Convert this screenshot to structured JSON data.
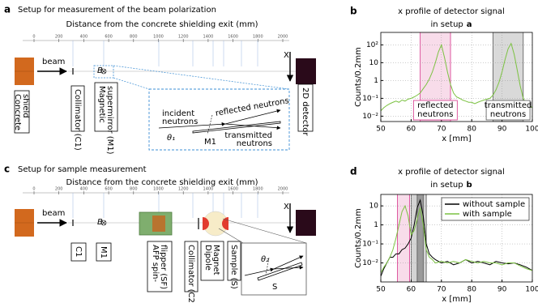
{
  "setup_a": {
    "label": "a",
    "title": "Setup for measurement of the beam polarization",
    "axis_title": "Distance from the concrete shielding exit (mm)",
    "xlim": [
      0,
      2000
    ],
    "ticks": [
      0,
      200,
      400,
      600,
      800,
      1000,
      1200,
      1400,
      1600,
      1800,
      2000
    ],
    "beam": "beam",
    "x_axis": "X",
    "field": "B",
    "components": {
      "shield": [
        "Concrete",
        "shield"
      ],
      "collimator": [
        "Collimator (C1)"
      ],
      "mirror": [
        "Magnetic",
        "supermirror (M1)"
      ],
      "detector": [
        "2D detector"
      ]
    },
    "inset": {
      "incident": [
        "incident",
        "neutrons"
      ],
      "reflected": "reflected neutrons",
      "transmitted": [
        "transmitted",
        "neutrons"
      ],
      "angle": "θ₁",
      "element": "M1"
    }
  },
  "setup_c": {
    "label": "c",
    "title": "Setup for sample measurement",
    "axis_title": "Distance from the concrete shielding exit (mm)",
    "xlim": [
      0,
      2000
    ],
    "ticks": [
      0,
      200,
      400,
      600,
      800,
      1000,
      1200,
      1400,
      1600,
      1800,
      2000
    ],
    "beam": "beam",
    "x_axis": "X",
    "field": "B",
    "components": {
      "c1": [
        "C1"
      ],
      "m1": [
        "M1"
      ],
      "flipper": [
        "AFP spin-",
        "flipper (SF)"
      ],
      "collimator": [
        "Collimator (C2)"
      ],
      "magnet": [
        "Dipole",
        "Magnet"
      ],
      "sample": [
        "Sample (S)"
      ]
    },
    "inset": {
      "angle": "θ₂",
      "element": "S"
    }
  },
  "chart_data": [
    {
      "type": "line",
      "panel_label": "b",
      "title": [
        "x profile of detector signal",
        "in setup"
      ],
      "title_ref": "a",
      "xlabel": "x [mm]",
      "ylabel": "Counts/0.2mm",
      "xlim": [
        50,
        100
      ],
      "xticks": [
        50,
        60,
        70,
        80,
        90,
        100
      ],
      "ylim": [
        0.005,
        500
      ],
      "yscale": "log",
      "yticks": [
        {
          "value": 0.01,
          "label": "10⁻²"
        },
        {
          "value": 0.1,
          "label": "10⁻¹"
        },
        1,
        10,
        {
          "value": 100,
          "label": "10²"
        }
      ],
      "grid": true,
      "regions": [
        {
          "x": [
            63,
            73
          ],
          "color": "#f8dcea",
          "edge": "#d6338a",
          "label": [
            "reflected",
            "neutrons"
          ]
        },
        {
          "x": [
            87,
            97
          ],
          "color": "#d9d9d9",
          "edge": "#555555",
          "label": [
            "transmitted",
            "neutrons"
          ]
        }
      ],
      "x": [
        50,
        51,
        52,
        53,
        54,
        55,
        56,
        57,
        58,
        59,
        60,
        61,
        62,
        63,
        64,
        65,
        66,
        67,
        68,
        69,
        70,
        71,
        72,
        73,
        74,
        75,
        76,
        77,
        78,
        79,
        80,
        81,
        82,
        83,
        84,
        85,
        86,
        87,
        88,
        89,
        90,
        91,
        92,
        93,
        94,
        95,
        96,
        97,
        98,
        99,
        100
      ],
      "series": [
        {
          "color": "#7cc242",
          "values": [
            0.02,
            0.03,
            0.04,
            0.05,
            0.06,
            0.07,
            0.06,
            0.08,
            0.07,
            0.09,
            0.1,
            0.12,
            0.15,
            0.2,
            0.35,
            0.6,
            1.2,
            3,
            10,
            40,
            100,
            20,
            3,
            0.6,
            0.2,
            0.12,
            0.1,
            0.08,
            0.07,
            0.06,
            0.06,
            0.05,
            0.06,
            0.07,
            0.08,
            0.09,
            0.1,
            0.15,
            0.3,
            0.8,
            3,
            15,
            60,
            120,
            30,
            4,
            0.5,
            0.1,
            0.05,
            0.04,
            0.03
          ]
        }
      ]
    },
    {
      "type": "line",
      "panel_label": "d",
      "title": [
        "x profile of detector signal",
        "in setup"
      ],
      "title_ref": "b",
      "xlabel": "x [mm]",
      "ylabel": "Counts/0.2mm",
      "xlim": [
        50,
        100
      ],
      "xticks": [
        50,
        60,
        70,
        80,
        90,
        100
      ],
      "ylim": [
        0.001,
        40
      ],
      "yscale": "log",
      "yticks": [
        {
          "value": 0.01,
          "label": "10⁻²"
        },
        {
          "value": 0.1,
          "label": "10⁻¹"
        },
        1,
        10
      ],
      "grid": true,
      "legend": "upper right",
      "regions": [
        {
          "x": [
            55.5,
            59.5
          ],
          "color": "#f8dcea",
          "edge": "#d6338a"
        },
        {
          "x": [
            60,
            65
          ],
          "color": "#d4d4d4",
          "edge": "#555555"
        },
        {
          "x": [
            62,
            64
          ],
          "color": "#9a9a9a",
          "edge": "#555555"
        }
      ],
      "x": [
        50,
        51,
        52,
        53,
        54,
        55,
        56,
        57,
        58,
        59,
        60,
        61,
        62,
        63,
        64,
        65,
        66,
        67,
        68,
        70,
        72,
        74,
        76,
        78,
        80,
        82,
        84,
        86,
        88,
        90,
        92,
        94,
        96,
        98,
        100
      ],
      "series": [
        {
          "name": "without sample",
          "color": "#000000",
          "values": [
            0.002,
            0.005,
            0.01,
            0.02,
            0.02,
            0.03,
            0.03,
            0.05,
            0.06,
            0.1,
            0.2,
            1,
            8,
            20,
            3,
            0.1,
            0.03,
            0.02,
            0.015,
            0.01,
            0.012,
            0.008,
            0.01,
            0.015,
            0.01,
            0.012,
            0.01,
            0.008,
            0.012,
            0.01,
            0.009,
            0.01,
            0.008,
            0.006,
            0.004
          ]
        },
        {
          "name": "with sample",
          "color": "#7cc242",
          "values": [
            0.003,
            0.006,
            0.01,
            0.02,
            0.05,
            0.2,
            1,
            5,
            10,
            3,
            0.3,
            0.5,
            2,
            8,
            1,
            0.05,
            0.02,
            0.015,
            0.01,
            0.012,
            0.01,
            0.012,
            0.01,
            0.015,
            0.012,
            0.01,
            0.012,
            0.01,
            0.01,
            0.008,
            0.01,
            0.01,
            0.007,
            0.005,
            0.004
          ]
        }
      ]
    }
  ]
}
